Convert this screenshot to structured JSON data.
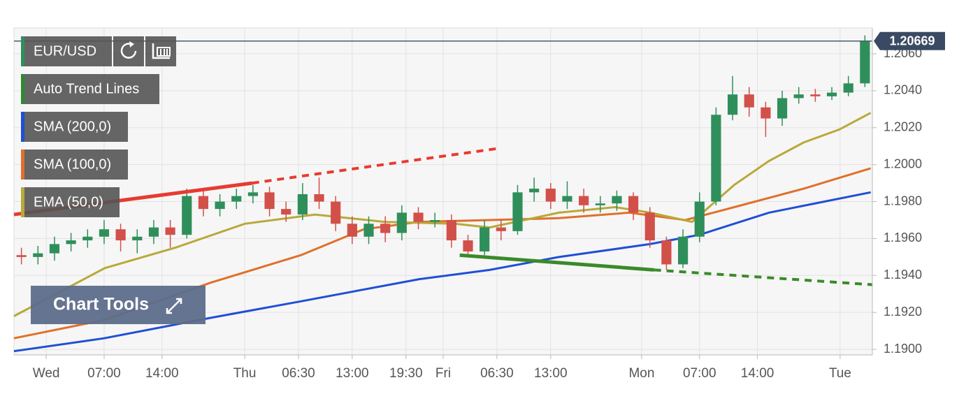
{
  "chart_data": {
    "type": "candlestick",
    "xlim": [
      -3.9,
      99.9
    ],
    "ylim": [
      1.1897,
      1.2074
    ],
    "grid": true,
    "xticks": [
      {
        "value": 0,
        "label": "Wed"
      },
      {
        "value": 7,
        "label": "07:00"
      },
      {
        "value": 14,
        "label": "14:00"
      },
      {
        "value": 24,
        "label": "Thu"
      },
      {
        "value": 30.5,
        "label": "06:30"
      },
      {
        "value": 37,
        "label": "13:00"
      },
      {
        "value": 43.5,
        "label": "19:30"
      },
      {
        "value": 48,
        "label": "Fri"
      },
      {
        "value": 54.5,
        "label": "06:30"
      },
      {
        "value": 61,
        "label": "13:00"
      },
      {
        "value": 72,
        "label": "Mon"
      },
      {
        "value": 79,
        "label": "07:00"
      },
      {
        "value": 86,
        "label": "14:00"
      },
      {
        "value": 96,
        "label": "Tue"
      }
    ],
    "yticks": [
      {
        "value": 1.19,
        "label": "1.1900"
      },
      {
        "value": 1.192,
        "label": "1.1920"
      },
      {
        "value": 1.194,
        "label": "1.1940"
      },
      {
        "value": 1.196,
        "label": "1.1960"
      },
      {
        "value": 1.198,
        "label": "1.1980"
      },
      {
        "value": 1.2,
        "label": "1.2000"
      },
      {
        "value": 1.202,
        "label": "1.2020"
      },
      {
        "value": 1.204,
        "label": "1.2040"
      },
      {
        "value": 1.206,
        "label": "1.2060"
      }
    ],
    "candles": {
      "name": "EUR/USD",
      "up_color": "#2f8f5b",
      "down_color": "#d2504a",
      "x": [
        -3,
        -1,
        1,
        3,
        5,
        7,
        9,
        11,
        13,
        15,
        17,
        19,
        21,
        23,
        25,
        27,
        29,
        31,
        33,
        35,
        37,
        39,
        41,
        43,
        45,
        47,
        49,
        51,
        53,
        55,
        57,
        59,
        61,
        63,
        65,
        67,
        69,
        71,
        73,
        75,
        77,
        79,
        81,
        83,
        85,
        87,
        89,
        91,
        93,
        95,
        97,
        99
      ],
      "open": [
        1.1951,
        1.195,
        1.1952,
        1.1957,
        1.1959,
        1.1961,
        1.1965,
        1.1959,
        1.1961,
        1.1966,
        1.1962,
        1.1983,
        1.1976,
        1.198,
        1.1983,
        1.1985,
        1.1976,
        1.1973,
        1.1984,
        1.198,
        1.1968,
        1.1961,
        1.1968,
        1.1963,
        1.1974,
        1.1969,
        1.197,
        1.1959,
        1.1953,
        1.1966,
        1.1964,
        1.1985,
        1.1987,
        1.198,
        1.1983,
        1.1978,
        1.1979,
        1.1983,
        1.1974,
        1.1959,
        1.1946,
        1.1961,
        1.198,
        1.2027,
        1.2038,
        1.2031,
        1.2025,
        1.2036,
        1.2038,
        1.2037,
        1.2039,
        1.2044
      ],
      "high": [
        1.1955,
        1.1956,
        1.1961,
        1.1963,
        1.1965,
        1.197,
        1.1968,
        1.1965,
        1.197,
        1.197,
        1.1987,
        1.1986,
        1.1984,
        1.1987,
        1.1989,
        1.1988,
        1.198,
        1.199,
        1.1993,
        1.1983,
        1.1972,
        1.1972,
        1.1972,
        1.1978,
        1.1977,
        1.1974,
        1.1973,
        1.1962,
        1.197,
        1.197,
        1.1989,
        1.1993,
        1.199,
        1.1991,
        1.1987,
        1.1983,
        1.1986,
        1.1985,
        1.1977,
        1.1961,
        1.1965,
        1.1985,
        1.2031,
        1.2048,
        1.2042,
        1.2034,
        1.204,
        1.2042,
        1.2041,
        1.2042,
        1.2048,
        1.207
      ],
      "low": [
        1.1946,
        1.1946,
        1.1948,
        1.1953,
        1.1955,
        1.1957,
        1.1953,
        1.1952,
        1.1957,
        1.1955,
        1.196,
        1.1972,
        1.1972,
        1.1976,
        1.1979,
        1.1972,
        1.1969,
        1.197,
        1.1976,
        1.1964,
        1.1957,
        1.1957,
        1.1958,
        1.1959,
        1.1965,
        1.1966,
        1.1955,
        1.195,
        1.1951,
        1.1959,
        1.1962,
        1.198,
        1.1976,
        1.1976,
        1.1974,
        1.1974,
        1.1975,
        1.197,
        1.1955,
        1.1943,
        1.1944,
        1.1958,
        1.1978,
        1.2024,
        1.2026,
        1.2015,
        1.2021,
        1.2033,
        1.2034,
        1.2035,
        1.2037,
        1.2042
      ],
      "close": [
        1.195,
        1.1952,
        1.1957,
        1.1959,
        1.1961,
        1.1965,
        1.1959,
        1.1961,
        1.1966,
        1.1962,
        1.1983,
        1.1976,
        1.198,
        1.1983,
        1.1985,
        1.1976,
        1.1973,
        1.1984,
        1.198,
        1.1968,
        1.1961,
        1.1968,
        1.1963,
        1.1974,
        1.1969,
        1.197,
        1.1959,
        1.1953,
        1.1966,
        1.1964,
        1.1985,
        1.1987,
        1.198,
        1.1983,
        1.1978,
        1.1979,
        1.1983,
        1.1974,
        1.1959,
        1.1946,
        1.1961,
        1.198,
        1.2027,
        1.2038,
        1.2031,
        1.2025,
        1.2036,
        1.2038,
        1.2037,
        1.2039,
        1.2044,
        1.2067
      ]
    },
    "trend_lines": {
      "name": "Auto Trend Lines",
      "legend_color": "#2f8a2f",
      "lines": [
        {
          "color": "#e83a30",
          "x": [
            -3.9,
            24.9,
            55
          ],
          "values": [
            1.1973,
            1.199,
            1.2009
          ]
        },
        {
          "color": "#3a8a2a",
          "x": [
            50,
            73.5,
            99.9
          ],
          "values": [
            1.1951,
            1.1943,
            1.1935
          ]
        }
      ]
    },
    "series": [
      {
        "name": "SMA (200,0)",
        "color": "#1f4fd6",
        "x": [
          -3.9,
          7,
          19.8,
          30.8,
          45.1,
          53.6,
          62,
          73,
          79,
          87.4,
          99.7
        ],
        "values": [
          1.1899,
          1.1906,
          1.1917,
          1.1926,
          1.1938,
          1.1943,
          1.195,
          1.1957,
          1.1962,
          1.1974,
          1.1985
        ]
      },
      {
        "name": "SMA (100,0)",
        "color": "#e0702a",
        "x": [
          -3.9,
          7.1,
          19.8,
          30.8,
          38.4,
          45.1,
          53.6,
          62,
          70.5,
          77.3,
          83.2,
          91.6,
          99.7
        ],
        "values": [
          1.1906,
          1.1916,
          1.1936,
          1.1951,
          1.1965,
          1.1969,
          1.197,
          1.1971,
          1.1974,
          1.197,
          1.1977,
          1.1987,
          1.1998
        ]
      },
      {
        "name": "EMA (50,0)",
        "color": "#b8a93a",
        "x": [
          -3.9,
          7.1,
          15.6,
          24,
          32.5,
          40.9,
          49.4,
          53.6,
          62,
          68.8,
          73,
          78.1,
          83.2,
          87.4,
          91.6,
          95.9,
          99.7
        ],
        "values": [
          1.1918,
          1.1944,
          1.1955,
          1.1968,
          1.1973,
          1.1969,
          1.1968,
          1.1966,
          1.1974,
          1.1977,
          1.1974,
          1.1969,
          1.1989,
          1.2002,
          1.2012,
          1.2019,
          1.2028
        ]
      }
    ],
    "last_price": 1.20669,
    "chart_tools": "Chart Tools"
  }
}
